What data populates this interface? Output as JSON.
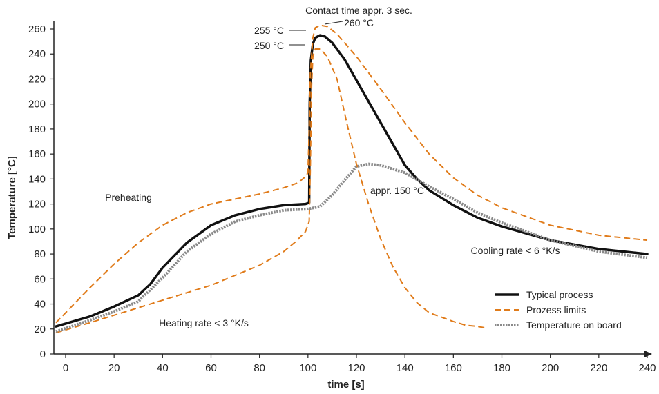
{
  "chart_data": {
    "type": "line",
    "xlabel": "time [s]",
    "ylabel": "Temperature [°C]",
    "xlim": [
      -4,
      240
    ],
    "ylim": [
      0,
      260
    ],
    "x_ticks": [
      0,
      20,
      40,
      60,
      80,
      100,
      120,
      140,
      160,
      180,
      200,
      220,
      240
    ],
    "y_ticks": [
      0,
      20,
      40,
      60,
      80,
      100,
      120,
      140,
      160,
      180,
      200,
      220,
      240,
      260
    ],
    "grid": false,
    "legend_position": "bottom-right",
    "colors": {
      "typical": "#111111",
      "limits": "#e07b1a",
      "board": "#8a8a8a"
    },
    "series": [
      {
        "name": "Typical process",
        "style": "solid",
        "points": [
          [
            -4,
            22
          ],
          [
            10,
            30
          ],
          [
            20,
            38
          ],
          [
            30,
            47
          ],
          [
            35,
            56
          ],
          [
            40,
            69
          ],
          [
            50,
            89
          ],
          [
            60,
            103
          ],
          [
            70,
            111
          ],
          [
            80,
            116
          ],
          [
            90,
            119
          ],
          [
            99,
            120
          ],
          [
            100.5,
            121
          ],
          [
            100.7,
            200
          ],
          [
            101.2,
            235
          ],
          [
            102,
            248
          ],
          [
            103,
            253
          ],
          [
            105,
            255
          ],
          [
            107,
            254
          ],
          [
            110,
            249
          ],
          [
            115,
            236
          ],
          [
            120,
            219
          ],
          [
            130,
            185
          ],
          [
            140,
            151
          ],
          [
            145,
            140
          ],
          [
            150,
            131
          ],
          [
            160,
            119
          ],
          [
            170,
            109
          ],
          [
            180,
            102
          ],
          [
            200,
            91
          ],
          [
            220,
            84
          ],
          [
            240,
            80
          ]
        ]
      },
      {
        "name": "Prozess limits",
        "style": "dashed",
        "segments": [
          [
            [
              -4,
              25
            ],
            [
              10,
              53
            ],
            [
              20,
              72
            ],
            [
              30,
              89
            ],
            [
              40,
              103
            ],
            [
              50,
              113
            ],
            [
              60,
              120
            ],
            [
              70,
              124
            ],
            [
              80,
              128
            ],
            [
              90,
              133
            ],
            [
              96,
              137
            ],
            [
              99,
              142
            ],
            [
              100,
              145
            ],
            [
              100.5,
              180
            ],
            [
              101,
              225
            ],
            [
              102,
              253
            ],
            [
              103,
              261
            ],
            [
              105,
              263
            ],
            [
              108,
              262
            ],
            [
              112,
              256
            ],
            [
              120,
              238
            ],
            [
              130,
              212
            ],
            [
              140,
              185
            ],
            [
              150,
              160
            ],
            [
              160,
              141
            ],
            [
              170,
              127
            ],
            [
              180,
              117
            ],
            [
              200,
              103
            ],
            [
              220,
              95
            ],
            [
              240,
              91
            ]
          ],
          [
            [
              -4,
              17
            ],
            [
              10,
              25
            ],
            [
              20,
              31
            ],
            [
              40,
              43
            ],
            [
              60,
              55
            ],
            [
              80,
              71
            ],
            [
              90,
              82
            ],
            [
              95,
              90
            ],
            [
              99,
              98
            ],
            [
              100.5,
              106
            ],
            [
              101,
              150
            ],
            [
              101.5,
              215
            ],
            [
              102,
              238
            ],
            [
              103,
              244
            ],
            [
              105,
              244
            ],
            [
              108,
              238
            ],
            [
              112,
              220
            ],
            [
              116,
              185
            ],
            [
              120,
              152
            ],
            [
              125,
              120
            ],
            [
              130,
              92
            ],
            [
              135,
              70
            ],
            [
              140,
              53
            ],
            [
              145,
              41
            ],
            [
              150,
              33
            ],
            [
              160,
              26
            ],
            [
              165,
              23
            ],
            [
              170,
              22
            ],
            [
              173,
              21
            ]
          ]
        ]
      },
      {
        "name": "Temperature on board",
        "style": "dotted",
        "points": [
          [
            -4,
            18
          ],
          [
            10,
            27
          ],
          [
            20,
            34
          ],
          [
            30,
            42
          ],
          [
            40,
            61
          ],
          [
            50,
            82
          ],
          [
            60,
            96
          ],
          [
            70,
            106
          ],
          [
            80,
            111
          ],
          [
            90,
            115
          ],
          [
            100,
            116
          ],
          [
            105,
            118
          ],
          [
            110,
            127
          ],
          [
            115,
            139
          ],
          [
            120,
            150
          ],
          [
            125,
            152
          ],
          [
            130,
            151
          ],
          [
            140,
            145
          ],
          [
            150,
            134
          ],
          [
            160,
            124
          ],
          [
            170,
            113
          ],
          [
            180,
            105
          ],
          [
            200,
            91
          ],
          [
            220,
            82
          ],
          [
            240,
            77
          ]
        ]
      }
    ],
    "annotations": [
      {
        "id": "contact",
        "text": "Contact time appr. 3 sec.",
        "x": 121,
        "y": 273
      },
      {
        "id": "t260",
        "text": "260 °C",
        "x": 121,
        "y": 263
      },
      {
        "id": "t255",
        "text": "255 °C",
        "x": 91,
        "y": 255
      },
      {
        "id": "t250",
        "text": "250 °C",
        "x": 91,
        "y": 242
      },
      {
        "id": "pre",
        "text": "Preheating",
        "x": 16,
        "y": 125
      },
      {
        "id": "heat",
        "text": "Heating rate < 3 °K/s",
        "x": 38,
        "y": 26
      },
      {
        "id": "appr150",
        "text": "appr. 150 °C",
        "x": 124,
        "y": 130
      },
      {
        "id": "cool",
        "text": "Cooling rate < 6 °K/s",
        "x": 160,
        "y": 81
      }
    ]
  }
}
